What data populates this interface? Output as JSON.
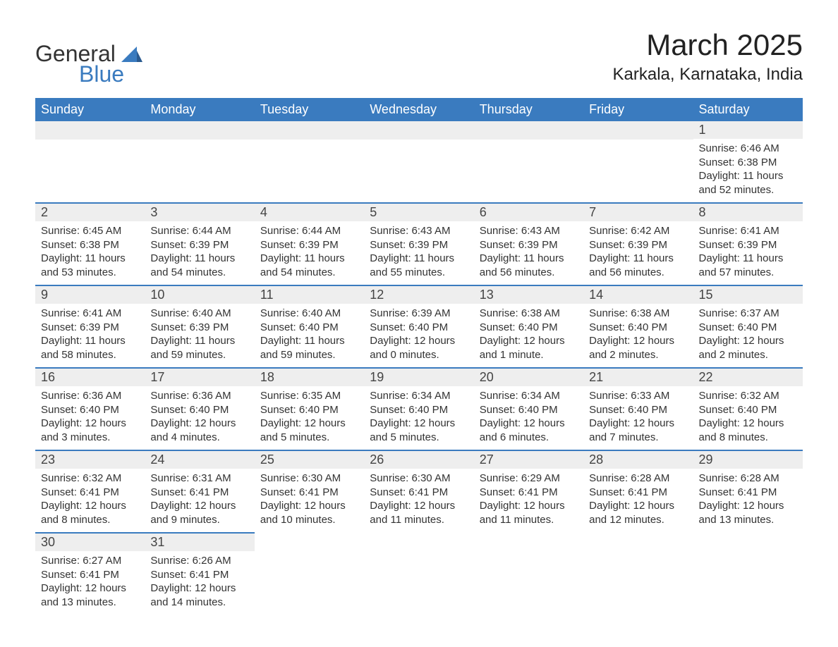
{
  "logo": {
    "line1": "General",
    "line2": "Blue",
    "text_color": "#333333",
    "blue_color": "#3a7bbf"
  },
  "header": {
    "title": "March 2025",
    "location": "Karkala, Karnataka, India",
    "title_fontsize": 42,
    "location_fontsize": 24,
    "text_color": "#222222"
  },
  "calendar": {
    "header_bg": "#3a7bbf",
    "header_text_color": "#ffffff",
    "row_border_color": "#3a7bbf",
    "daynum_bg": "#eeeeee",
    "body_text_color": "#333333",
    "columns": [
      "Sunday",
      "Monday",
      "Tuesday",
      "Wednesday",
      "Thursday",
      "Friday",
      "Saturday"
    ],
    "weeks": [
      [
        null,
        null,
        null,
        null,
        null,
        null,
        {
          "day": "1",
          "sunrise": "Sunrise: 6:46 AM",
          "sunset": "Sunset: 6:38 PM",
          "daylight": "Daylight: 11 hours and 52 minutes."
        }
      ],
      [
        {
          "day": "2",
          "sunrise": "Sunrise: 6:45 AM",
          "sunset": "Sunset: 6:38 PM",
          "daylight": "Daylight: 11 hours and 53 minutes."
        },
        {
          "day": "3",
          "sunrise": "Sunrise: 6:44 AM",
          "sunset": "Sunset: 6:39 PM",
          "daylight": "Daylight: 11 hours and 54 minutes."
        },
        {
          "day": "4",
          "sunrise": "Sunrise: 6:44 AM",
          "sunset": "Sunset: 6:39 PM",
          "daylight": "Daylight: 11 hours and 54 minutes."
        },
        {
          "day": "5",
          "sunrise": "Sunrise: 6:43 AM",
          "sunset": "Sunset: 6:39 PM",
          "daylight": "Daylight: 11 hours and 55 minutes."
        },
        {
          "day": "6",
          "sunrise": "Sunrise: 6:43 AM",
          "sunset": "Sunset: 6:39 PM",
          "daylight": "Daylight: 11 hours and 56 minutes."
        },
        {
          "day": "7",
          "sunrise": "Sunrise: 6:42 AM",
          "sunset": "Sunset: 6:39 PM",
          "daylight": "Daylight: 11 hours and 56 minutes."
        },
        {
          "day": "8",
          "sunrise": "Sunrise: 6:41 AM",
          "sunset": "Sunset: 6:39 PM",
          "daylight": "Daylight: 11 hours and 57 minutes."
        }
      ],
      [
        {
          "day": "9",
          "sunrise": "Sunrise: 6:41 AM",
          "sunset": "Sunset: 6:39 PM",
          "daylight": "Daylight: 11 hours and 58 minutes."
        },
        {
          "day": "10",
          "sunrise": "Sunrise: 6:40 AM",
          "sunset": "Sunset: 6:39 PM",
          "daylight": "Daylight: 11 hours and 59 minutes."
        },
        {
          "day": "11",
          "sunrise": "Sunrise: 6:40 AM",
          "sunset": "Sunset: 6:40 PM",
          "daylight": "Daylight: 11 hours and 59 minutes."
        },
        {
          "day": "12",
          "sunrise": "Sunrise: 6:39 AM",
          "sunset": "Sunset: 6:40 PM",
          "daylight": "Daylight: 12 hours and 0 minutes."
        },
        {
          "day": "13",
          "sunrise": "Sunrise: 6:38 AM",
          "sunset": "Sunset: 6:40 PM",
          "daylight": "Daylight: 12 hours and 1 minute."
        },
        {
          "day": "14",
          "sunrise": "Sunrise: 6:38 AM",
          "sunset": "Sunset: 6:40 PM",
          "daylight": "Daylight: 12 hours and 2 minutes."
        },
        {
          "day": "15",
          "sunrise": "Sunrise: 6:37 AM",
          "sunset": "Sunset: 6:40 PM",
          "daylight": "Daylight: 12 hours and 2 minutes."
        }
      ],
      [
        {
          "day": "16",
          "sunrise": "Sunrise: 6:36 AM",
          "sunset": "Sunset: 6:40 PM",
          "daylight": "Daylight: 12 hours and 3 minutes."
        },
        {
          "day": "17",
          "sunrise": "Sunrise: 6:36 AM",
          "sunset": "Sunset: 6:40 PM",
          "daylight": "Daylight: 12 hours and 4 minutes."
        },
        {
          "day": "18",
          "sunrise": "Sunrise: 6:35 AM",
          "sunset": "Sunset: 6:40 PM",
          "daylight": "Daylight: 12 hours and 5 minutes."
        },
        {
          "day": "19",
          "sunrise": "Sunrise: 6:34 AM",
          "sunset": "Sunset: 6:40 PM",
          "daylight": "Daylight: 12 hours and 5 minutes."
        },
        {
          "day": "20",
          "sunrise": "Sunrise: 6:34 AM",
          "sunset": "Sunset: 6:40 PM",
          "daylight": "Daylight: 12 hours and 6 minutes."
        },
        {
          "day": "21",
          "sunrise": "Sunrise: 6:33 AM",
          "sunset": "Sunset: 6:40 PM",
          "daylight": "Daylight: 12 hours and 7 minutes."
        },
        {
          "day": "22",
          "sunrise": "Sunrise: 6:32 AM",
          "sunset": "Sunset: 6:40 PM",
          "daylight": "Daylight: 12 hours and 8 minutes."
        }
      ],
      [
        {
          "day": "23",
          "sunrise": "Sunrise: 6:32 AM",
          "sunset": "Sunset: 6:41 PM",
          "daylight": "Daylight: 12 hours and 8 minutes."
        },
        {
          "day": "24",
          "sunrise": "Sunrise: 6:31 AM",
          "sunset": "Sunset: 6:41 PM",
          "daylight": "Daylight: 12 hours and 9 minutes."
        },
        {
          "day": "25",
          "sunrise": "Sunrise: 6:30 AM",
          "sunset": "Sunset: 6:41 PM",
          "daylight": "Daylight: 12 hours and 10 minutes."
        },
        {
          "day": "26",
          "sunrise": "Sunrise: 6:30 AM",
          "sunset": "Sunset: 6:41 PM",
          "daylight": "Daylight: 12 hours and 11 minutes."
        },
        {
          "day": "27",
          "sunrise": "Sunrise: 6:29 AM",
          "sunset": "Sunset: 6:41 PM",
          "daylight": "Daylight: 12 hours and 11 minutes."
        },
        {
          "day": "28",
          "sunrise": "Sunrise: 6:28 AM",
          "sunset": "Sunset: 6:41 PM",
          "daylight": "Daylight: 12 hours and 12 minutes."
        },
        {
          "day": "29",
          "sunrise": "Sunrise: 6:28 AM",
          "sunset": "Sunset: 6:41 PM",
          "daylight": "Daylight: 12 hours and 13 minutes."
        }
      ],
      [
        {
          "day": "30",
          "sunrise": "Sunrise: 6:27 AM",
          "sunset": "Sunset: 6:41 PM",
          "daylight": "Daylight: 12 hours and 13 minutes."
        },
        {
          "day": "31",
          "sunrise": "Sunrise: 6:26 AM",
          "sunset": "Sunset: 6:41 PM",
          "daylight": "Daylight: 12 hours and 14 minutes."
        },
        null,
        null,
        null,
        null,
        null
      ]
    ]
  }
}
